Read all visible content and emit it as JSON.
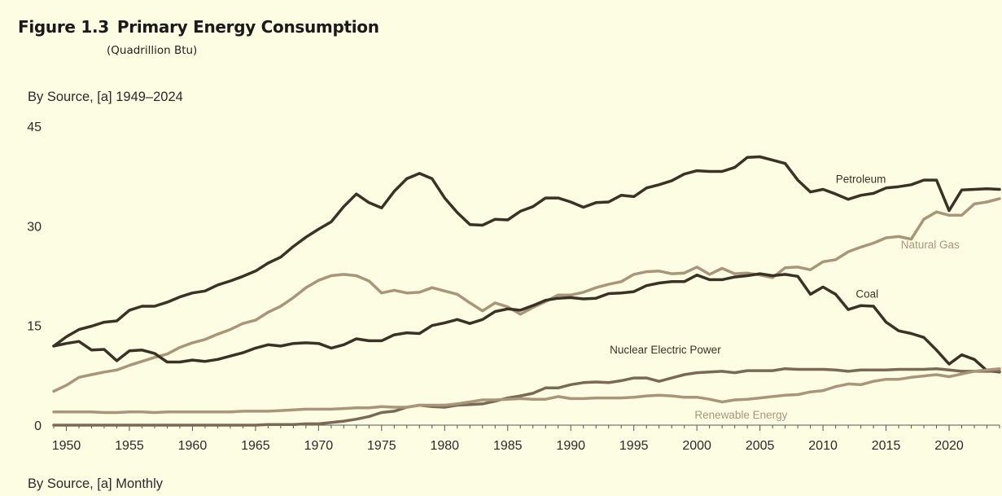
{
  "figure": {
    "number": "Figure 1.3",
    "title": "Primary Energy Consumption",
    "units": "(Quadrillion Btu)"
  },
  "panel_top_title": "By Source, [a] 1949–2024",
  "panel_bottom_title": "By Source, [a] Monthly",
  "colors": {
    "background": "#fdfde3",
    "dark": "#3b3226",
    "tan": "#a9967a"
  },
  "chart_data": {
    "type": "line",
    "x_start": 1949,
    "x_step": 1,
    "xlim": [
      1949,
      2024
    ],
    "ylim": [
      0,
      45
    ],
    "x_ticks": [
      1950,
      1955,
      1960,
      1965,
      1970,
      1975,
      1980,
      1985,
      1990,
      1995,
      2000,
      2005,
      2010,
      2015,
      2020
    ],
    "y_ticks": [
      0,
      15,
      30,
      45
    ],
    "grid": false,
    "legend": "inline labels",
    "series": [
      {
        "name": "Petroleum",
        "color": "#3b3226",
        "values": [
          11.9,
          13.3,
          14.4,
          14.9,
          15.5,
          15.7,
          17.3,
          17.9,
          17.9,
          18.5,
          19.3,
          19.9,
          20.2,
          21.1,
          21.7,
          22.4,
          23.2,
          24.4,
          25.3,
          26.9,
          28.3,
          29.5,
          30.6,
          32.9,
          34.8,
          33.5,
          32.7,
          35.2,
          37.1,
          37.9,
          37.1,
          34.2,
          32.0,
          30.2,
          30.1,
          31.0,
          30.9,
          32.2,
          32.9,
          34.2,
          34.2,
          33.6,
          32.8,
          33.5,
          33.6,
          34.6,
          34.4,
          35.7,
          36.2,
          36.8,
          37.8,
          38.3,
          38.2,
          38.2,
          38.8,
          40.3,
          40.4,
          39.9,
          39.4,
          36.9,
          35.1,
          35.5,
          34.8,
          34.0,
          34.6,
          34.9,
          35.7,
          35.9,
          36.2,
          36.9,
          36.9,
          32.3,
          35.4,
          35.5,
          35.6,
          35.5
        ]
      },
      {
        "name": "Natural Gas",
        "color": "#a9967a",
        "values": [
          5.1,
          6.0,
          7.2,
          7.6,
          8.0,
          8.3,
          9.0,
          9.6,
          10.2,
          10.7,
          11.7,
          12.4,
          12.9,
          13.7,
          14.4,
          15.3,
          15.8,
          17.0,
          17.9,
          19.2,
          20.7,
          21.8,
          22.5,
          22.7,
          22.5,
          21.7,
          19.9,
          20.3,
          19.9,
          20.0,
          20.7,
          20.2,
          19.7,
          18.4,
          17.2,
          18.4,
          17.8,
          16.7,
          17.7,
          18.6,
          19.6,
          19.6,
          20.0,
          20.7,
          21.2,
          21.6,
          22.7,
          23.1,
          23.2,
          22.8,
          22.9,
          23.8,
          22.7,
          23.6,
          22.8,
          22.9,
          22.6,
          22.2,
          23.7,
          23.8,
          23.4,
          24.6,
          24.9,
          26.1,
          26.8,
          27.4,
          28.2,
          28.4,
          28.0,
          31.0,
          32.1,
          31.6,
          31.6,
          33.3,
          33.6,
          34.1
        ]
      },
      {
        "name": "Coal",
        "color": "#3b3226",
        "values": [
          11.9,
          12.3,
          12.6,
          11.3,
          11.4,
          9.7,
          11.2,
          11.3,
          10.8,
          9.5,
          9.5,
          9.8,
          9.6,
          9.9,
          10.4,
          10.9,
          11.6,
          12.1,
          11.9,
          12.3,
          12.4,
          12.3,
          11.6,
          12.1,
          13.0,
          12.7,
          12.7,
          13.6,
          13.9,
          13.8,
          15.0,
          15.4,
          15.9,
          15.3,
          15.9,
          17.1,
          17.5,
          17.3,
          18.0,
          18.8,
          19.1,
          19.2,
          19.0,
          19.1,
          19.8,
          19.9,
          20.1,
          21.0,
          21.4,
          21.6,
          21.6,
          22.6,
          21.9,
          21.9,
          22.3,
          22.5,
          22.8,
          22.5,
          22.7,
          22.4,
          19.7,
          20.8,
          19.7,
          17.4,
          18.0,
          17.9,
          15.5,
          14.2,
          13.8,
          13.2,
          11.3,
          9.2,
          10.6,
          9.9,
          8.2,
          8.0
        ]
      },
      {
        "name": "Nuclear Electric Power",
        "color": "#7a6a55",
        "values": [
          0,
          0,
          0,
          0,
          0,
          0,
          0,
          0,
          0,
          0,
          0,
          0,
          0,
          0,
          0,
          0,
          0,
          0.1,
          0.1,
          0.1,
          0.2,
          0.2,
          0.4,
          0.6,
          0.9,
          1.3,
          1.9,
          2.1,
          2.7,
          3.0,
          2.8,
          2.7,
          3.0,
          3.1,
          3.2,
          3.6,
          4.1,
          4.4,
          4.8,
          5.6,
          5.6,
          6.1,
          6.4,
          6.5,
          6.4,
          6.7,
          7.1,
          7.1,
          6.6,
          7.1,
          7.6,
          7.9,
          8.0,
          8.1,
          7.9,
          8.2,
          8.2,
          8.2,
          8.5,
          8.4,
          8.4,
          8.4,
          8.3,
          8.1,
          8.3,
          8.3,
          8.3,
          8.4,
          8.4,
          8.4,
          8.5,
          8.3,
          8.1,
          8.1,
          8.1,
          8.1
        ]
      },
      {
        "name": "Renewable Energy",
        "color": "#a9967a",
        "values": [
          2.0,
          2.0,
          2.0,
          2.0,
          1.9,
          1.9,
          2.0,
          2.0,
          1.9,
          2.0,
          2.0,
          2.0,
          2.0,
          2.0,
          2.0,
          2.1,
          2.1,
          2.1,
          2.2,
          2.3,
          2.4,
          2.4,
          2.4,
          2.5,
          2.6,
          2.6,
          2.8,
          2.7,
          2.7,
          3.0,
          3.0,
          3.0,
          3.2,
          3.5,
          3.8,
          3.8,
          3.9,
          4.0,
          3.9,
          3.9,
          4.3,
          4.0,
          4.0,
          4.1,
          4.1,
          4.1,
          4.2,
          4.4,
          4.5,
          4.4,
          4.2,
          4.2,
          3.9,
          3.5,
          3.8,
          3.9,
          4.1,
          4.3,
          4.5,
          4.6,
          5.0,
          5.2,
          5.8,
          6.2,
          6.1,
          6.6,
          6.9,
          6.9,
          7.2,
          7.4,
          7.6,
          7.3,
          7.7,
          8.1,
          8.3,
          8.5
        ]
      }
    ],
    "annotations": [
      {
        "text": "Petroleum",
        "x": 2013,
        "y": 36.5,
        "color": "#3b3226"
      },
      {
        "text": "Natural Gas",
        "x": 2018.5,
        "y": 26.6,
        "color": "#a9967a"
      },
      {
        "text": "Coal",
        "x": 2013.5,
        "y": 19.2,
        "color": "#3b3226"
      },
      {
        "text": "Nuclear Electric Power",
        "x": 1997.5,
        "y": 10.8,
        "color": "#3b3226"
      },
      {
        "text": "Renewable Energy",
        "x": 2003.5,
        "y": 1.0,
        "color": "#a9967a"
      }
    ]
  }
}
